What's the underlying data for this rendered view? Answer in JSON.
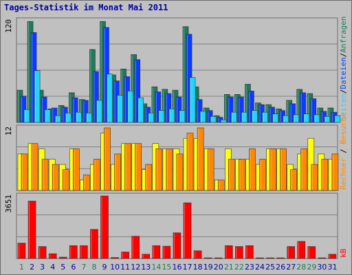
{
  "title": "Tages-Statistik im Monat Mai 2011",
  "colors": {
    "anfragen": "#1e7a5a",
    "dateien": "#0a3cff",
    "seiten": "#22d4ff",
    "besuche": "#ffff00",
    "rechner": "#ff8800",
    "kb": "#ff0000",
    "weekend_day": "#1e7a5a",
    "weekday": "#0000a0",
    "panel_bg": "#c0c0c0"
  },
  "chart_data": [
    {
      "type": "bar",
      "name": "top",
      "y_label": "120",
      "ylim": [
        0,
        120
      ],
      "categories": [
        "1",
        "2",
        "3",
        "4",
        "5",
        "6",
        "7",
        "8",
        "9",
        "10",
        "11",
        "12",
        "13",
        "14",
        "15",
        "16",
        "17",
        "18",
        "19",
        "20",
        "21",
        "22",
        "23",
        "24",
        "25",
        "26",
        "27",
        "28",
        "29",
        "30",
        "31"
      ],
      "weekend_days": [
        "1",
        "7",
        "8",
        "14",
        "15",
        "21",
        "22",
        "28",
        "29"
      ],
      "right_labels": [
        "Anfragen",
        "Dateien",
        "Seiten"
      ],
      "series": [
        {
          "name": "Anfragen",
          "values": [
            38,
            119,
            38,
            16,
            20,
            35,
            27,
            86,
            119,
            56,
            63,
            80,
            22,
            42,
            39,
            38,
            113,
            42,
            17,
            8,
            33,
            33,
            45,
            23,
            21,
            16,
            26,
            39,
            34,
            17,
            17
          ]
        },
        {
          "name": "Dateien",
          "values": [
            31,
            106,
            30,
            17,
            18,
            29,
            26,
            60,
            112,
            49,
            54,
            74,
            18,
            36,
            34,
            30,
            104,
            27,
            14,
            6,
            30,
            30,
            37,
            21,
            18,
            14,
            22,
            35,
            28,
            13,
            12
          ]
        },
        {
          "name": "Seiten",
          "values": [
            15,
            61,
            15,
            8,
            11,
            12,
            11,
            26,
            57,
            32,
            37,
            29,
            11,
            14,
            16,
            14,
            53,
            13,
            7,
            3,
            12,
            12,
            14,
            12,
            10,
            8,
            9,
            10,
            9,
            7,
            8
          ]
        }
      ]
    },
    {
      "type": "bar",
      "name": "middle",
      "y_label": "12",
      "ylim": [
        0,
        12
      ],
      "categories": [
        "1",
        "2",
        "3",
        "4",
        "5",
        "6",
        "7",
        "8",
        "9",
        "10",
        "11",
        "12",
        "13",
        "14",
        "15",
        "16",
        "17",
        "18",
        "19",
        "20",
        "21",
        "22",
        "23",
        "24",
        "25",
        "26",
        "27",
        "28",
        "29",
        "30",
        "31"
      ],
      "right_labels": [
        "Rechner",
        "Besuche"
      ],
      "series": [
        {
          "name": "Besuche",
          "values": [
            7,
            9,
            8,
            6,
            5,
            8,
            2,
            5,
            11,
            5,
            9,
            9,
            4,
            9,
            8,
            8,
            10,
            10,
            8,
            2,
            8,
            6,
            6,
            5,
            8,
            8,
            5,
            7,
            10,
            7,
            6
          ]
        },
        {
          "name": "Rechner",
          "values": [
            7,
            9,
            6,
            5,
            4,
            8,
            3,
            6,
            12,
            7,
            9,
            9,
            5,
            8,
            8,
            7,
            11,
            12,
            8,
            2,
            6,
            6,
            8,
            6,
            8,
            8,
            4,
            8,
            5,
            6,
            7
          ]
        }
      ]
    },
    {
      "type": "bar",
      "name": "bottom",
      "y_label": "3651",
      "ylim": [
        0,
        3651
      ],
      "categories": [
        "1",
        "2",
        "3",
        "4",
        "5",
        "6",
        "7",
        "8",
        "9",
        "10",
        "11",
        "12",
        "13",
        "14",
        "15",
        "16",
        "17",
        "18",
        "19",
        "20",
        "21",
        "22",
        "23",
        "24",
        "25",
        "26",
        "27",
        "28",
        "29",
        "30",
        "31"
      ],
      "right_labels": [
        "kB"
      ],
      "series": [
        {
          "name": "kB",
          "values": [
            900,
            3350,
            700,
            280,
            80,
            750,
            750,
            1700,
            3651,
            60,
            380,
            1300,
            250,
            750,
            720,
            1500,
            3250,
            450,
            30,
            20,
            750,
            700,
            750,
            25,
            30,
            30,
            700,
            1000,
            700,
            30,
            250
          ]
        }
      ]
    }
  ]
}
